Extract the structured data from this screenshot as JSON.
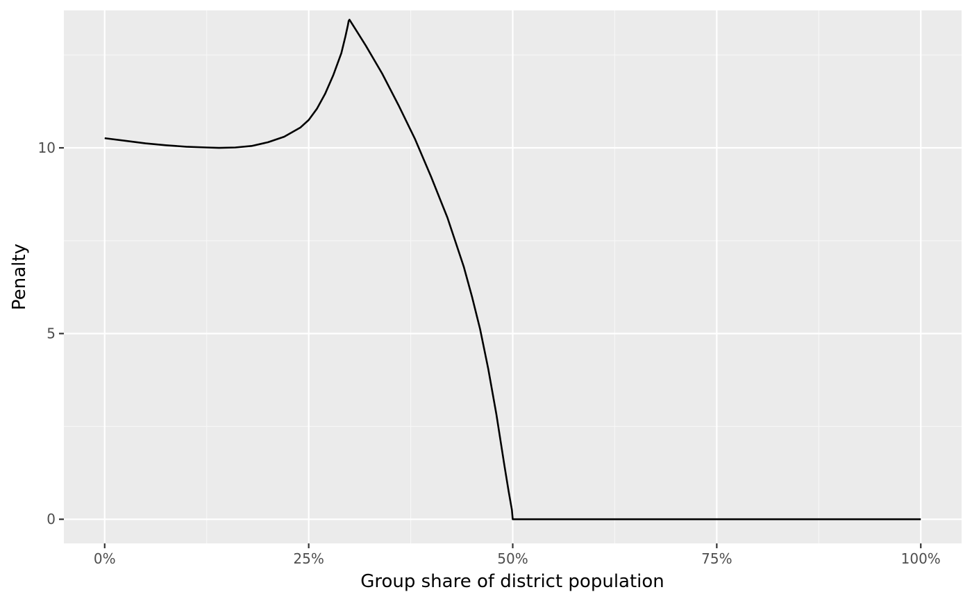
{
  "chart_data": {
    "type": "line",
    "title": "",
    "xlabel": "Group share of district population",
    "ylabel": "Penalty",
    "xlim": [
      -0.05,
      1.05
    ],
    "ylim": [
      -0.65,
      13.7
    ],
    "x_ticks": [
      {
        "value": 0.0,
        "label": "0%"
      },
      {
        "value": 0.25,
        "label": "25%"
      },
      {
        "value": 0.5,
        "label": "50%"
      },
      {
        "value": 0.75,
        "label": "75%"
      },
      {
        "value": 1.0,
        "label": "100%"
      }
    ],
    "x_minor_ticks": [
      0.125,
      0.375,
      0.625,
      0.875
    ],
    "y_ticks": [
      {
        "value": 0,
        "label": "0"
      },
      {
        "value": 5,
        "label": "5"
      },
      {
        "value": 10,
        "label": "10"
      }
    ],
    "y_minor_ticks": [
      2.5,
      7.5,
      12.5
    ],
    "grid": true,
    "legend": "none",
    "colors": {
      "panel_background": "#ebebeb",
      "grid_major": "#ffffff",
      "grid_minor": "#f7f7f7",
      "line": "#000000",
      "tick_mark": "#333333"
    },
    "series": [
      {
        "x": [
          0.0,
          0.025,
          0.05,
          0.075,
          0.1,
          0.125,
          0.14,
          0.16,
          0.18,
          0.2,
          0.22,
          0.24,
          0.25,
          0.26,
          0.27,
          0.28,
          0.29,
          0.295,
          0.298,
          0.299,
          0.3,
          0.31,
          0.32,
          0.34,
          0.36,
          0.38,
          0.4,
          0.42,
          0.44,
          0.45,
          0.46,
          0.47,
          0.48,
          0.49,
          0.495,
          0.499,
          0.5,
          0.6,
          0.7,
          0.8,
          0.9,
          1.0
        ],
        "y": [
          10.26,
          10.19,
          10.12,
          10.07,
          10.03,
          10.01,
          10.0,
          10.01,
          10.05,
          10.15,
          10.3,
          10.55,
          10.75,
          11.05,
          11.45,
          11.95,
          12.55,
          13.0,
          13.3,
          13.42,
          13.45,
          13.1,
          12.75,
          12.0,
          11.15,
          10.25,
          9.22,
          8.12,
          6.8,
          6.0,
          5.12,
          4.05,
          2.82,
          1.42,
          0.75,
          0.25,
          0.0,
          0.0,
          0.0,
          0.0,
          0.0,
          0.0
        ]
      }
    ]
  }
}
